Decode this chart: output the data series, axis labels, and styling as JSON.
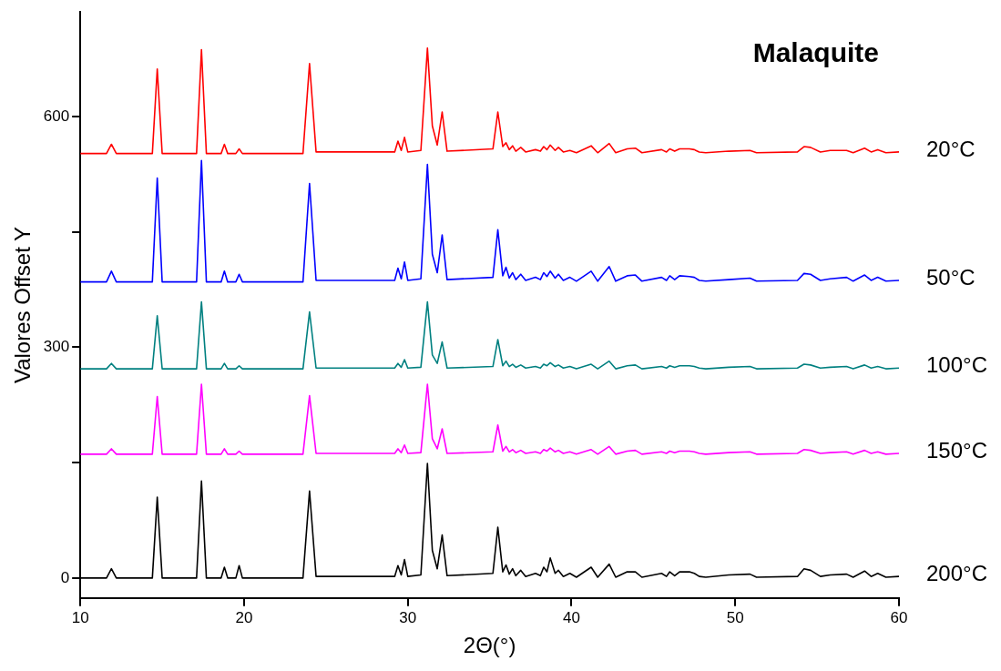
{
  "chart_data": {
    "type": "line",
    "title": "Malaquite",
    "xlabel": "2Θ(°)",
    "ylabel": "Valores Offset Y",
    "x": [
      10,
      11.6,
      11.9,
      12.2,
      14.4,
      14.7,
      15.0,
      17.1,
      17.4,
      17.7,
      18.6,
      18.8,
      19.0,
      19.5,
      19.7,
      19.9,
      23.6,
      24.0,
      24.4,
      29.2,
      29.4,
      29.6,
      29.8,
      30.0,
      30.8,
      31.2,
      31.5,
      31.8,
      32.1,
      32.4,
      35.2,
      35.5,
      35.8,
      36.0,
      36.2,
      36.4,
      36.6,
      36.9,
      37.2,
      37.8,
      38.1,
      38.3,
      38.5,
      38.7,
      39.0,
      39.2,
      39.5,
      39.9,
      40.3,
      41.2,
      41.6,
      42.3,
      42.7,
      43.4,
      43.9,
      44.3,
      45.5,
      45.8,
      46.0,
      46.3,
      46.6,
      47.2,
      47.5,
      47.8,
      48.2,
      49.6,
      50.9,
      51.3,
      53.8,
      54.2,
      54.6,
      55.2,
      55.8,
      56.8,
      57.2,
      57.9,
      58.3,
      58.7,
      59.2,
      60
    ],
    "series": [
      {
        "name": "20°C",
        "color": "#ff0000",
        "values": [
          552,
          552,
          564,
          552,
          552,
          662,
          552,
          552,
          687,
          552,
          552,
          564,
          552,
          552,
          558,
          552,
          552,
          669,
          554,
          554,
          568,
          556,
          573,
          554,
          556,
          689,
          588,
          563,
          606,
          555,
          558,
          606,
          561,
          566,
          557,
          562,
          555,
          560,
          554,
          557,
          555,
          561,
          557,
          563,
          556,
          560,
          554,
          556,
          553,
          562,
          553,
          565,
          553,
          558,
          559,
          553,
          557,
          554,
          558,
          555,
          558,
          558,
          557,
          554,
          553,
          555,
          556,
          553,
          554,
          561,
          560,
          554,
          556,
          556,
          553,
          559,
          554,
          557,
          553,
          554
        ]
      },
      {
        "name": "50°C",
        "color": "#0000ff",
        "values": [
          385,
          385,
          399,
          385,
          385,
          520,
          385,
          385,
          543,
          385,
          385,
          399,
          385,
          385,
          395,
          385,
          385,
          513,
          387,
          387,
          403,
          389,
          411,
          387,
          389,
          538,
          421,
          397,
          446,
          388,
          391,
          453,
          393,
          404,
          390,
          397,
          388,
          395,
          387,
          391,
          388,
          397,
          392,
          399,
          390,
          395,
          387,
          391,
          386,
          399,
          386,
          405,
          386,
          393,
          394,
          386,
          391,
          387,
          393,
          388,
          393,
          392,
          391,
          387,
          386,
          388,
          390,
          386,
          387,
          396,
          395,
          387,
          389,
          391,
          386,
          394,
          387,
          391,
          386,
          387
        ]
      },
      {
        "name": "100°C",
        "color": "#008080",
        "values": [
          272,
          272,
          279,
          272,
          272,
          341,
          272,
          272,
          359,
          272,
          272,
          279,
          272,
          272,
          276,
          272,
          272,
          346,
          273,
          273,
          279,
          274,
          284,
          273,
          274,
          359,
          290,
          279,
          307,
          273,
          275,
          310,
          276,
          282,
          275,
          278,
          274,
          277,
          273,
          275,
          273,
          278,
          276,
          280,
          275,
          277,
          273,
          275,
          272,
          278,
          272,
          282,
          272,
          276,
          277,
          272,
          275,
          273,
          276,
          274,
          276,
          276,
          275,
          273,
          272,
          274,
          275,
          272,
          273,
          278,
          277,
          273,
          274,
          275,
          272,
          277,
          273,
          275,
          272,
          273
        ]
      },
      {
        "name": "150°C",
        "color": "#ff00ff",
        "values": [
          161,
          161,
          168,
          161,
          161,
          236,
          161,
          161,
          252,
          161,
          161,
          168,
          161,
          161,
          165,
          161,
          161,
          237,
          162,
          162,
          168,
          163,
          173,
          162,
          163,
          252,
          181,
          168,
          194,
          162,
          164,
          199,
          165,
          171,
          164,
          167,
          163,
          166,
          162,
          164,
          162,
          167,
          165,
          169,
          164,
          166,
          162,
          164,
          161,
          167,
          161,
          171,
          161,
          165,
          166,
          161,
          164,
          162,
          165,
          163,
          165,
          165,
          164,
          162,
          161,
          163,
          164,
          161,
          162,
          167,
          166,
          162,
          163,
          164,
          161,
          166,
          162,
          164,
          161,
          162
        ]
      },
      {
        "name": "200°C",
        "color": "#000000",
        "values": [
          0,
          0,
          12,
          0,
          0,
          105,
          0,
          0,
          126,
          0,
          0,
          14,
          0,
          0,
          16,
          0,
          0,
          113,
          2,
          2,
          16,
          4,
          24,
          2,
          4,
          149,
          36,
          12,
          56,
          3,
          6,
          66,
          8,
          17,
          5,
          12,
          3,
          10,
          2,
          6,
          3,
          14,
          8,
          26,
          6,
          10,
          2,
          6,
          1,
          14,
          1,
          18,
          1,
          8,
          8,
          1,
          6,
          2,
          8,
          3,
          8,
          8,
          6,
          2,
          1,
          4,
          5,
          1,
          2,
          12,
          10,
          2,
          4,
          5,
          1,
          9,
          2,
          6,
          1,
          2
        ]
      }
    ],
    "xlim": [
      10,
      60
    ],
    "xticks": [
      10,
      20,
      30,
      40,
      50,
      60
    ],
    "ylim": [
      -26,
      736
    ],
    "yticks": [
      0,
      {
        "value": 150,
        "label": null
      },
      300,
      {
        "value": 450,
        "label": null
      },
      600
    ],
    "grid": false,
    "legend": false,
    "marker": "none",
    "line_style": "solid"
  }
}
